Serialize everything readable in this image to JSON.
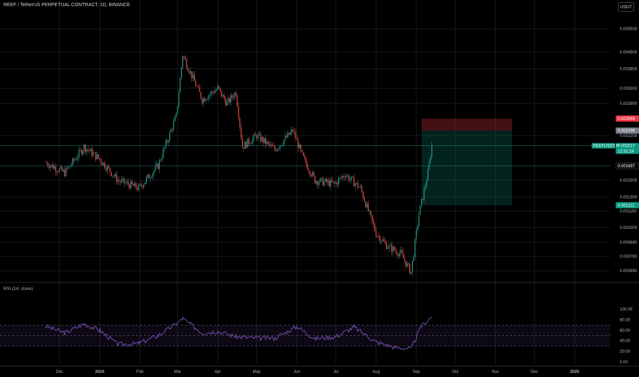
{
  "header": {
    "title": "REEF / TetherUS PERPETUAL CONTRACT, 1D, BINANCE",
    "currency": "USDT"
  },
  "rsi_panel": {
    "title": "RSI (14, close)"
  },
  "colors": {
    "up": "#26a69a",
    "down": "#ef5350",
    "rsi_line": "#7e57c2",
    "grid": "#1a1a1a"
  },
  "chart_data": [
    {
      "type": "candlestick",
      "title": "REEF / TetherUS PERPETUAL CONTRACT, 1D, BINANCE",
      "scale": "log",
      "y_ticks": [
        "0.005500",
        "0.004500",
        "0.003900",
        "0.003300",
        "0.002900",
        "0.002200",
        "0.001500",
        "0.001300",
        "0.001150",
        "0.001000",
        "0.000880",
        "0.000780",
        "0.000690"
      ],
      "x_ticks": [
        "Dec",
        "2024",
        "Feb",
        "Mar",
        "Apr",
        "May",
        "Jun",
        "Jul",
        "Aug",
        "Sep",
        "Oct",
        "Nov",
        "Dec",
        "2025"
      ],
      "series": [
        {
          "x": [
            "2023-11-20",
            "2023-12-05",
            "2023-12-20",
            "2024-01-01",
            "2024-01-15",
            "2024-01-31",
            "2024-02-15",
            "2024-02-29",
            "2024-03-05",
            "2024-03-20",
            "2024-04-01",
            "2024-04-08",
            "2024-04-15",
            "2024-04-20",
            "2024-05-01",
            "2024-05-15",
            "2024-05-29",
            "2024-06-05",
            "2024-06-15",
            "2024-06-30",
            "2024-07-08",
            "2024-07-20",
            "2024-08-01",
            "2024-08-10",
            "2024-08-20",
            "2024-08-28",
            "2024-09-03",
            "2024-09-10",
            "2024-09-13"
          ],
          "values": [
            0.00175,
            0.0016,
            0.002,
            0.0018,
            0.0015,
            0.0014,
            0.0017,
            0.0026,
            0.0044,
            0.003,
            0.0033,
            0.0029,
            0.0032,
            0.002,
            0.0022,
            0.00195,
            0.0023,
            0.00185,
            0.0015,
            0.00145,
            0.00158,
            0.0014,
            0.00095,
            0.00085,
            0.0008,
            0.00068,
            0.00112,
            0.0016,
            0.00202
          ]
        }
      ],
      "price_labels": [
        {
          "text": "0.002546",
          "value": 0.002546,
          "color": "#f23645"
        },
        {
          "text": "0.002296",
          "value": 0.002296,
          "color": "#787b86"
        },
        {
          "text": "0.002017",
          "value": 0.002017,
          "color": "#089981",
          "ticker": "REEFUSDT.P",
          "countdown": "12:31:24"
        },
        {
          "text": "0.001697",
          "value": 0.001697,
          "color": "#0b0b0b"
        },
        {
          "text": "0.001211",
          "value": 0.001211,
          "color": "#089981"
        }
      ],
      "position_box": {
        "entry": 0.002296,
        "stop": 0.002546,
        "target": 0.001211
      }
    },
    {
      "type": "line",
      "title": "RSI (14, close)",
      "ylim": [
        0,
        100
      ],
      "y_ticks": [
        "100.00",
        "80.00",
        "60.00",
        "40.00",
        "20.00",
        "0.00"
      ],
      "bands": {
        "upper": 70,
        "middle": 50,
        "lower": 30
      },
      "series": [
        {
          "x": [
            "2023-11-20",
            "2023-12-05",
            "2023-12-20",
            "2024-01-01",
            "2024-01-15",
            "2024-01-31",
            "2024-02-15",
            "2024-02-29",
            "2024-03-05",
            "2024-03-20",
            "2024-04-01",
            "2024-04-15",
            "2024-05-01",
            "2024-05-15",
            "2024-06-01",
            "2024-06-15",
            "2024-07-01",
            "2024-07-15",
            "2024-08-01",
            "2024-08-15",
            "2024-08-28",
            "2024-09-05",
            "2024-09-13"
          ],
          "values": [
            68,
            55,
            72,
            60,
            33,
            35,
            50,
            72,
            82,
            55,
            58,
            48,
            45,
            45,
            67,
            44,
            48,
            66,
            38,
            28,
            25,
            68,
            86
          ]
        }
      ]
    }
  ]
}
